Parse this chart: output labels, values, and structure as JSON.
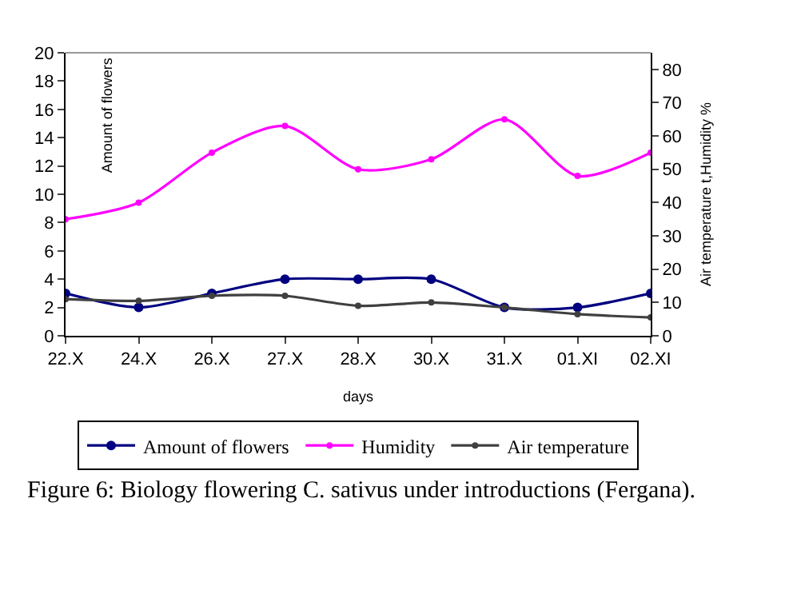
{
  "chart_data": {
    "type": "line",
    "xlabel": "days",
    "ylabel": "Amount of flowers",
    "y2label": "Air temperature t,Humidity %",
    "categories": [
      "22.X",
      "24.X",
      "26.X",
      "27.X",
      "28.X",
      "30.X",
      "31.X",
      "01.XI",
      "02.XI"
    ],
    "series": [
      {
        "name": "Amount of flowers",
        "color": "#000080",
        "values": [
          3,
          2,
          3,
          4,
          4,
          4,
          2,
          2,
          3
        ]
      },
      {
        "name": "Humidity",
        "color": "#ff00ff",
        "axis": "y2",
        "values": [
          35,
          40,
          55,
          63,
          50,
          53,
          65,
          48,
          55
        ]
      },
      {
        "name": "Air temperature",
        "color": "#404040",
        "axis": "y2",
        "values": [
          11,
          10.5,
          12,
          12,
          9,
          10,
          8.5,
          6.5,
          5.5
        ]
      }
    ],
    "ylim": [
      0,
      20
    ],
    "yticks": [
      0,
      2,
      4,
      6,
      8,
      10,
      12,
      14,
      16,
      18,
      20
    ],
    "y2lim": [
      0,
      85
    ],
    "y2ticks": [
      0,
      10,
      20,
      30,
      40,
      50,
      60,
      70,
      80
    ],
    "marker": "circle",
    "line_style": "solid",
    "legend": "bottom",
    "annotations": [
      "Figure 6: Biology flowering C. sativus under introductions (Fergana)."
    ]
  }
}
